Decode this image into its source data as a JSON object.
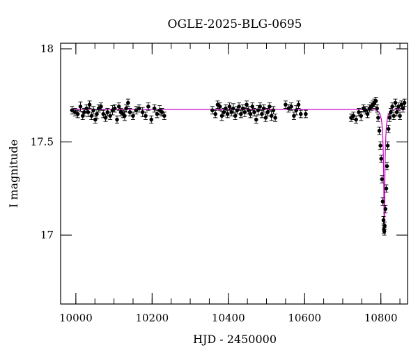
{
  "chart_data": {
    "type": "scatter",
    "title": "OGLE-2025-BLG-0695",
    "xlabel": "HJD - 2450000",
    "ylabel": "I magnitude",
    "xlim": [
      9960,
      10870
    ],
    "ylim": [
      18.03,
      16.63
    ],
    "y_inverted": true,
    "grid": false,
    "x_ticks": [
      10000,
      10200,
      10400,
      10600,
      10800
    ],
    "y_ticks": [
      17,
      17.5,
      18
    ],
    "x_tick_labels": [
      "10000",
      "10200",
      "10400",
      "10600",
      "10800"
    ],
    "y_tick_labels": [
      "17",
      "17.5",
      "18"
    ],
    "x_minor_step": 50,
    "y_minor_step": 0.1,
    "colors": {
      "points": "#000000",
      "model": "#cc00cc",
      "axes": "#000000"
    },
    "series": [
      {
        "kind": "points_with_errorbars",
        "points": [
          [
            9990,
            17.67,
            0.02
          ],
          [
            9998,
            17.66,
            0.02
          ],
          [
            10005,
            17.65,
            0.02
          ],
          [
            10012,
            17.69,
            0.025
          ],
          [
            10018,
            17.64,
            0.02
          ],
          [
            10022,
            17.66,
            0.02
          ],
          [
            10028,
            17.68,
            0.02
          ],
          [
            10032,
            17.66,
            0.025
          ],
          [
            10036,
            17.7,
            0.02
          ],
          [
            10041,
            17.64,
            0.02
          ],
          [
            10046,
            17.67,
            0.02
          ],
          [
            10051,
            17.62,
            0.02
          ],
          [
            10055,
            17.65,
            0.025
          ],
          [
            10060,
            17.68,
            0.02
          ],
          [
            10066,
            17.69,
            0.02
          ],
          [
            10072,
            17.65,
            0.02
          ],
          [
            10078,
            17.63,
            0.02
          ],
          [
            10083,
            17.66,
            0.02
          ],
          [
            10090,
            17.64,
            0.02
          ],
          [
            10096,
            17.67,
            0.025
          ],
          [
            10102,
            17.68,
            0.02
          ],
          [
            10108,
            17.62,
            0.02
          ],
          [
            10113,
            17.69,
            0.02
          ],
          [
            10118,
            17.66,
            0.02
          ],
          [
            10124,
            17.65,
            0.02
          ],
          [
            10128,
            17.64,
            0.025
          ],
          [
            10132,
            17.68,
            0.02
          ],
          [
            10137,
            17.71,
            0.02
          ],
          [
            10142,
            17.66,
            0.02
          ],
          [
            10150,
            17.64,
            0.02
          ],
          [
            10158,
            17.67,
            0.02
          ],
          [
            10166,
            17.68,
            0.02
          ],
          [
            10175,
            17.66,
            0.025
          ],
          [
            10183,
            17.64,
            0.02
          ],
          [
            10190,
            17.69,
            0.02
          ],
          [
            10198,
            17.62,
            0.02
          ],
          [
            10206,
            17.68,
            0.02
          ],
          [
            10213,
            17.65,
            0.02
          ],
          [
            10220,
            17.67,
            0.025
          ],
          [
            10226,
            17.66,
            0.02
          ],
          [
            10232,
            17.64,
            0.02
          ],
          [
            10358,
            17.67,
            0.02
          ],
          [
            10366,
            17.65,
            0.02
          ],
          [
            10372,
            17.7,
            0.02
          ],
          [
            10378,
            17.69,
            0.02
          ],
          [
            10383,
            17.64,
            0.025
          ],
          [
            10388,
            17.66,
            0.02
          ],
          [
            10393,
            17.68,
            0.02
          ],
          [
            10398,
            17.65,
            0.02
          ],
          [
            10403,
            17.69,
            0.02
          ],
          [
            10408,
            17.66,
            0.02
          ],
          [
            10413,
            17.68,
            0.025
          ],
          [
            10418,
            17.64,
            0.02
          ],
          [
            10423,
            17.67,
            0.02
          ],
          [
            10428,
            17.69,
            0.02
          ],
          [
            10433,
            17.65,
            0.02
          ],
          [
            10438,
            17.68,
            0.02
          ],
          [
            10443,
            17.66,
            0.025
          ],
          [
            10448,
            17.7,
            0.02
          ],
          [
            10453,
            17.67,
            0.02
          ],
          [
            10458,
            17.65,
            0.02
          ],
          [
            10463,
            17.69,
            0.02
          ],
          [
            10468,
            17.66,
            0.02
          ],
          [
            10473,
            17.62,
            0.02
          ],
          [
            10478,
            17.67,
            0.025
          ],
          [
            10483,
            17.69,
            0.02
          ],
          [
            10488,
            17.65,
            0.02
          ],
          [
            10493,
            17.68,
            0.02
          ],
          [
            10498,
            17.63,
            0.02
          ],
          [
            10503,
            17.66,
            0.02
          ],
          [
            10508,
            17.69,
            0.02
          ],
          [
            10513,
            17.64,
            0.025
          ],
          [
            10518,
            17.67,
            0.02
          ],
          [
            10523,
            17.63,
            0.02
          ],
          [
            10550,
            17.7,
            0.02
          ],
          [
            10558,
            17.68,
            0.02
          ],
          [
            10565,
            17.69,
            0.02
          ],
          [
            10572,
            17.64,
            0.02
          ],
          [
            10578,
            17.67,
            0.025
          ],
          [
            10584,
            17.7,
            0.02
          ],
          [
            10590,
            17.65,
            0.02
          ],
          [
            10603,
            17.65,
            0.02
          ],
          [
            10722,
            17.63,
            0.02
          ],
          [
            10728,
            17.64,
            0.02
          ],
          [
            10735,
            17.62,
            0.02
          ],
          [
            10742,
            17.66,
            0.02
          ],
          [
            10748,
            17.64,
            0.025
          ],
          [
            10754,
            17.68,
            0.02
          ],
          [
            10760,
            17.67,
            0.02
          ],
          [
            10765,
            17.65,
            0.02
          ],
          [
            10770,
            17.68,
            0.02
          ],
          [
            10775,
            17.69,
            0.02
          ],
          [
            10779,
            17.7,
            0.02
          ],
          [
            10783,
            17.71,
            0.02
          ],
          [
            10787,
            17.72,
            0.02
          ],
          [
            10790,
            17.68,
            0.02
          ],
          [
            10793,
            17.63,
            0.02
          ],
          [
            10796,
            17.56,
            0.02
          ],
          [
            10799,
            17.48,
            0.02
          ],
          [
            10801,
            17.41,
            0.02
          ],
          [
            10803,
            17.3,
            0.02
          ],
          [
            10805,
            17.18,
            0.02
          ],
          [
            10807,
            17.08,
            0.02
          ],
          [
            10808,
            17.03,
            0.02
          ],
          [
            10809,
            17.02,
            0.02
          ],
          [
            10810,
            17.05,
            0.02
          ],
          [
            10812,
            17.14,
            0.02
          ],
          [
            10814,
            17.25,
            0.02
          ],
          [
            10816,
            17.37,
            0.02
          ],
          [
            10818,
            17.48,
            0.02
          ],
          [
            10820,
            17.57,
            0.02
          ],
          [
            10823,
            17.63,
            0.02
          ],
          [
            10826,
            17.66,
            0.02
          ],
          [
            10830,
            17.69,
            0.02
          ],
          [
            10834,
            17.64,
            0.02
          ],
          [
            10838,
            17.71,
            0.02
          ],
          [
            10842,
            17.66,
            0.02
          ],
          [
            10846,
            17.69,
            0.02
          ],
          [
            10850,
            17.64,
            0.02
          ],
          [
            10854,
            17.7,
            0.02
          ],
          [
            10858,
            17.68,
            0.02
          ],
          [
            10862,
            17.71,
            0.02
          ]
        ]
      },
      {
        "kind": "model_curve",
        "baseline": 17.675,
        "peak_time": 10809,
        "peak_mag": 17.02,
        "tE": 10,
        "u0": 0.1
      }
    ]
  }
}
